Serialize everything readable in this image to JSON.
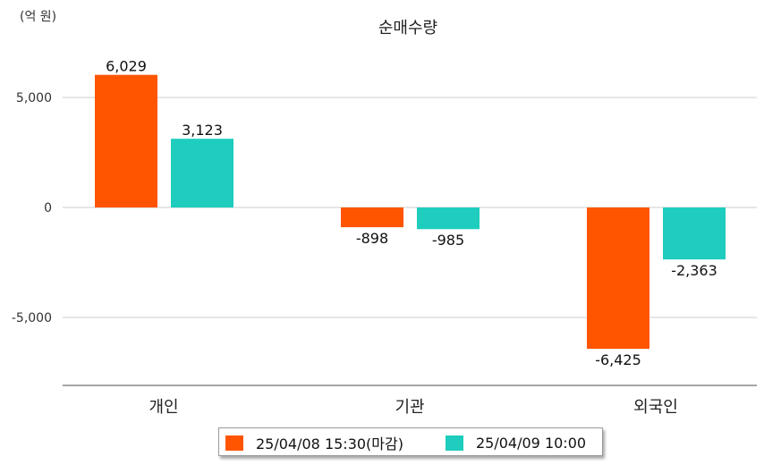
{
  "chart_data": {
    "type": "bar",
    "title": "순매수량",
    "unit_label": "(억 원)",
    "categories": [
      "개인",
      "기관",
      "외국인"
    ],
    "series": [
      {
        "name": "25/04/08 15:30(마감)",
        "color": "#ff5500",
        "values": [
          6029,
          -898,
          -6425
        ]
      },
      {
        "name": "25/04/09 10:00",
        "color": "#1ecdbd",
        "values": [
          3123,
          -985,
          -2363
        ]
      }
    ],
    "value_labels": [
      [
        "6,029",
        "-898",
        "-6,425"
      ],
      [
        "3,123",
        "-985",
        "-2,363"
      ]
    ],
    "yticks": [
      5000,
      0,
      -5000
    ],
    "ytick_labels": [
      "5,000",
      "0",
      "-5,000"
    ],
    "ylim": [
      -8000,
      7000
    ],
    "grid": true,
    "legend_position": "bottom"
  }
}
